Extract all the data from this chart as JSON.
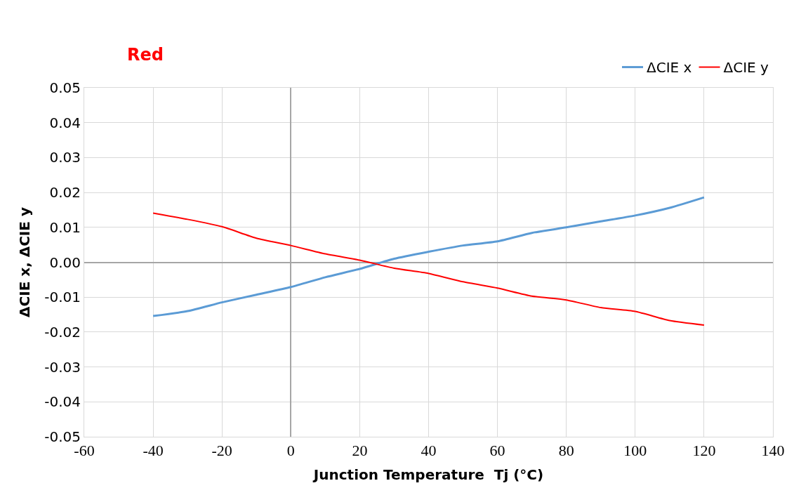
{
  "chart_data": {
    "type": "line",
    "title": "Red",
    "xlabel": "Junction Temperature  Tj (°C)",
    "ylabel": "ΔCIE x, ΔCIE y",
    "x": [
      -40,
      -30,
      -20,
      -10,
      0,
      10,
      20,
      30,
      40,
      50,
      60,
      70,
      80,
      90,
      100,
      110,
      120
    ],
    "series": [
      {
        "name": "ΔCIE x",
        "color": "#5b9bd5",
        "values": [
          -0.0154,
          -0.014,
          -0.0115,
          -0.0093,
          -0.0071,
          -0.0043,
          -0.0019,
          0.001,
          0.003,
          0.0048,
          0.006,
          0.0084,
          0.01,
          0.0117,
          0.0134,
          0.0156,
          0.0186
        ]
      },
      {
        "name": "ΔCIE y",
        "color": "#ff0000",
        "values": [
          0.0141,
          0.0123,
          0.0102,
          0.0069,
          0.0048,
          0.0024,
          0.0006,
          -0.0017,
          -0.0032,
          -0.0056,
          -0.0074,
          -0.0097,
          -0.0108,
          -0.013,
          -0.0141,
          -0.0167,
          -0.018
        ]
      }
    ],
    "xlim": [
      -60,
      140
    ],
    "xticks": [
      -60,
      -40,
      -20,
      0,
      20,
      40,
      60,
      80,
      100,
      120,
      140
    ],
    "ylim": [
      -0.05,
      0.05
    ],
    "yticks": [
      {
        "value": 0.05,
        "label": "0.05"
      },
      {
        "value": 0.04,
        "label": "0.04"
      },
      {
        "value": 0.03,
        "label": "0.03"
      },
      {
        "value": 0.02,
        "label": "0.02"
      },
      {
        "value": 0.01,
        "label": "0.01"
      },
      {
        "value": 0,
        "label": "0.00"
      },
      {
        "value": -0.01,
        "label": "-0.01"
      },
      {
        "value": -0.02,
        "label": "-0.02"
      },
      {
        "value": -0.03,
        "label": "-0.03"
      },
      {
        "value": -0.04,
        "label": "-0.04"
      },
      {
        "value": -0.05,
        "label": "-0.05"
      }
    ],
    "grid": true,
    "legend": "top right",
    "marker": "none",
    "line_style": "solid"
  }
}
